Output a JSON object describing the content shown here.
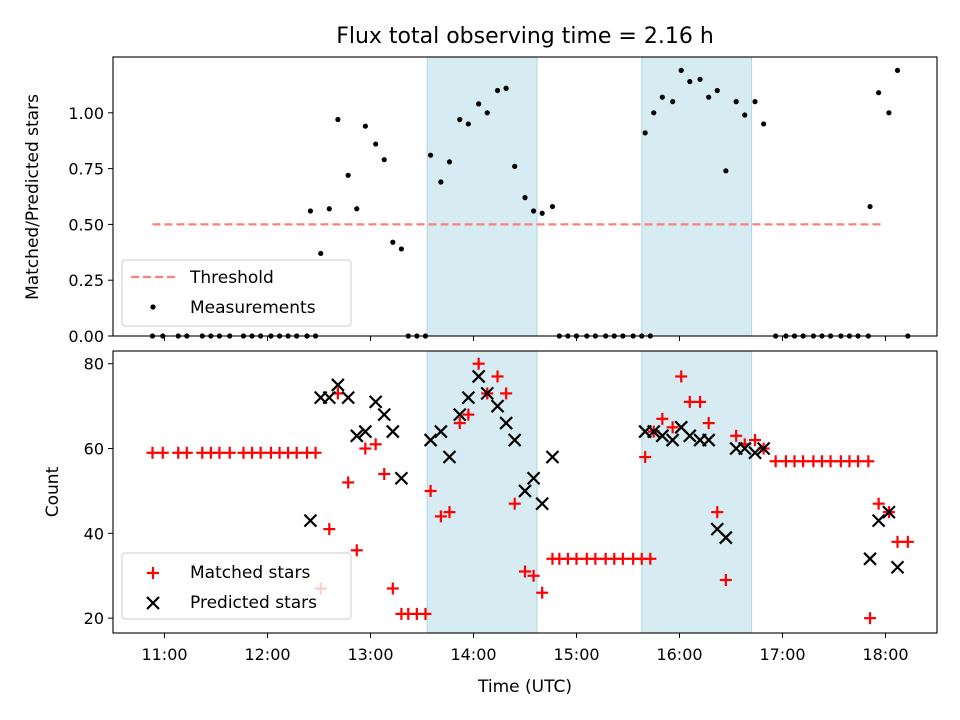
{
  "colors": {
    "shade": "#add8e6",
    "threshold": "#ff7f7f",
    "measurement": "#000000",
    "matched": "#ff0000",
    "predicted": "#000000"
  },
  "chart_data": [
    {
      "type": "scatter",
      "title": "Flux total observing time = 2.16 h",
      "xlabel": "",
      "ylabel": "Matched/Predicted stars",
      "xlim": [
        "10:30",
        "18:30"
      ],
      "ylim": [
        0,
        1.25
      ],
      "yticks": [
        "0.00",
        "0.25",
        "0.50",
        "0.75",
        "1.00"
      ],
      "shaded_spans": [
        [
          "13:33",
          "14:37"
        ],
        [
          "15:38",
          "16:42"
        ]
      ],
      "legend_position": "lower left",
      "threshold": {
        "name": "Threshold",
        "y": 0.5,
        "x_range": [
          "10:53",
          "17:59"
        ]
      },
      "series": [
        {
          "name": "Measurements",
          "points": [
            [
              "10:53",
              0.0
            ],
            [
              "10:59",
              0.0
            ],
            [
              "11:08",
              0.0
            ],
            [
              "11:13",
              0.0
            ],
            [
              "11:22",
              0.0
            ],
            [
              "11:27",
              0.0
            ],
            [
              "11:32",
              0.0
            ],
            [
              "11:38",
              0.0
            ],
            [
              "11:46",
              0.0
            ],
            [
              "11:51",
              0.0
            ],
            [
              "11:56",
              0.0
            ],
            [
              "12:02",
              0.0
            ],
            [
              "12:07",
              0.0
            ],
            [
              "12:12",
              0.0
            ],
            [
              "12:17",
              0.0
            ],
            [
              "12:23",
              0.0
            ],
            [
              "12:28",
              0.0
            ],
            [
              "12:25",
              0.56
            ],
            [
              "12:31",
              0.37
            ],
            [
              "12:36",
              0.57
            ],
            [
              "12:41",
              0.97
            ],
            [
              "12:47",
              0.72
            ],
            [
              "12:52",
              0.57
            ],
            [
              "12:57",
              0.94
            ],
            [
              "13:03",
              0.86
            ],
            [
              "13:08",
              0.79
            ],
            [
              "13:13",
              0.42
            ],
            [
              "13:18",
              0.39
            ],
            [
              "13:22",
              0.0
            ],
            [
              "13:27",
              0.0
            ],
            [
              "13:32",
              0.0
            ],
            [
              "13:35",
              0.81
            ],
            [
              "13:41",
              0.69
            ],
            [
              "13:46",
              0.78
            ],
            [
              "13:52",
              0.97
            ],
            [
              "13:57",
              0.95
            ],
            [
              "14:03",
              1.04
            ],
            [
              "14:08",
              1.0
            ],
            [
              "14:14",
              1.1
            ],
            [
              "14:19",
              1.11
            ],
            [
              "14:24",
              0.76
            ],
            [
              "14:30",
              0.62
            ],
            [
              "14:35",
              0.56
            ],
            [
              "14:40",
              0.55
            ],
            [
              "14:46",
              0.58
            ],
            [
              "14:50",
              0.0
            ],
            [
              "14:55",
              0.0
            ],
            [
              "15:00",
              0.0
            ],
            [
              "15:06",
              0.0
            ],
            [
              "15:11",
              0.0
            ],
            [
              "15:17",
              0.0
            ],
            [
              "15:22",
              0.0
            ],
            [
              "15:27",
              0.0
            ],
            [
              "15:33",
              0.0
            ],
            [
              "15:38",
              0.0
            ],
            [
              "15:43",
              0.0
            ],
            [
              "15:40",
              0.91
            ],
            [
              "15:45",
              1.0
            ],
            [
              "15:50",
              1.07
            ],
            [
              "15:56",
              1.05
            ],
            [
              "16:01",
              1.19
            ],
            [
              "16:06",
              1.14
            ],
            [
              "16:12",
              1.15
            ],
            [
              "16:17",
              1.07
            ],
            [
              "16:22",
              1.1
            ],
            [
              "16:27",
              0.74
            ],
            [
              "16:33",
              1.05
            ],
            [
              "16:38",
              0.99
            ],
            [
              "16:44",
              1.05
            ],
            [
              "16:49",
              0.95
            ],
            [
              "16:56",
              0.0
            ],
            [
              "17:02",
              0.0
            ],
            [
              "17:07",
              0.0
            ],
            [
              "17:12",
              0.0
            ],
            [
              "17:18",
              0.0
            ],
            [
              "17:23",
              0.0
            ],
            [
              "17:28",
              0.0
            ],
            [
              "17:34",
              0.0
            ],
            [
              "17:39",
              0.0
            ],
            [
              "17:44",
              0.0
            ],
            [
              "17:50",
              0.0
            ],
            [
              "17:51",
              0.58
            ],
            [
              "17:56",
              1.09
            ],
            [
              "18:02",
              1.0
            ],
            [
              "18:07",
              1.19
            ],
            [
              "18:13",
              0.0
            ]
          ]
        }
      ]
    },
    {
      "type": "scatter",
      "title": "",
      "xlabel": "Time (UTC)",
      "ylabel": "Count",
      "xlim": [
        "10:30",
        "18:30"
      ],
      "ylim": [
        16.5,
        83
      ],
      "xticks": [
        "11:00",
        "12:00",
        "13:00",
        "14:00",
        "15:00",
        "16:00",
        "17:00",
        "18:00"
      ],
      "yticks": [
        "20",
        "40",
        "60",
        "80"
      ],
      "shaded_spans": [
        [
          "13:33",
          "14:37"
        ],
        [
          "15:38",
          "16:42"
        ]
      ],
      "legend_position": "lower left",
      "series": [
        {
          "name": "Matched stars",
          "marker": "+",
          "points": [
            [
              "10:53",
              59
            ],
            [
              "10:59",
              59
            ],
            [
              "11:08",
              59
            ],
            [
              "11:13",
              59
            ],
            [
              "11:22",
              59
            ],
            [
              "11:27",
              59
            ],
            [
              "11:32",
              59
            ],
            [
              "11:38",
              59
            ],
            [
              "11:46",
              59
            ],
            [
              "11:51",
              59
            ],
            [
              "11:56",
              59
            ],
            [
              "12:02",
              59
            ],
            [
              "12:07",
              59
            ],
            [
              "12:12",
              59
            ],
            [
              "12:17",
              59
            ],
            [
              "12:23",
              59
            ],
            [
              "12:28",
              59
            ],
            [
              "12:31",
              27
            ],
            [
              "12:36",
              41
            ],
            [
              "12:41",
              73
            ],
            [
              "12:47",
              52
            ],
            [
              "12:52",
              36
            ],
            [
              "12:57",
              60
            ],
            [
              "13:03",
              61
            ],
            [
              "13:08",
              54
            ],
            [
              "13:13",
              27
            ],
            [
              "13:18",
              21
            ],
            [
              "13:22",
              21
            ],
            [
              "13:27",
              21
            ],
            [
              "13:32",
              21
            ],
            [
              "13:35",
              50
            ],
            [
              "13:41",
              44
            ],
            [
              "13:46",
              45
            ],
            [
              "13:52",
              66
            ],
            [
              "13:57",
              68
            ],
            [
              "14:03",
              80
            ],
            [
              "14:08",
              73
            ],
            [
              "14:14",
              77
            ],
            [
              "14:19",
              73
            ],
            [
              "14:24",
              47
            ],
            [
              "14:30",
              31
            ],
            [
              "14:35",
              30
            ],
            [
              "14:40",
              26
            ],
            [
              "14:46",
              34
            ],
            [
              "14:50",
              34
            ],
            [
              "14:55",
              34
            ],
            [
              "15:00",
              34
            ],
            [
              "15:06",
              34
            ],
            [
              "15:11",
              34
            ],
            [
              "15:17",
              34
            ],
            [
              "15:22",
              34
            ],
            [
              "15:27",
              34
            ],
            [
              "15:33",
              34
            ],
            [
              "15:38",
              34
            ],
            [
              "15:43",
              34
            ],
            [
              "15:40",
              58
            ],
            [
              "15:45",
              64
            ],
            [
              "15:50",
              67
            ],
            [
              "15:56",
              65
            ],
            [
              "16:01",
              77
            ],
            [
              "16:06",
              71
            ],
            [
              "16:12",
              71
            ],
            [
              "16:17",
              66
            ],
            [
              "16:22",
              45
            ],
            [
              "16:27",
              29
            ],
            [
              "16:33",
              63
            ],
            [
              "16:38",
              61
            ],
            [
              "16:44",
              62
            ],
            [
              "16:49",
              60
            ],
            [
              "16:56",
              57
            ],
            [
              "17:02",
              57
            ],
            [
              "17:07",
              57
            ],
            [
              "17:12",
              57
            ],
            [
              "17:18",
              57
            ],
            [
              "17:23",
              57
            ],
            [
              "17:28",
              57
            ],
            [
              "17:34",
              57
            ],
            [
              "17:39",
              57
            ],
            [
              "17:44",
              57
            ],
            [
              "17:50",
              57
            ],
            [
              "17:51",
              20
            ],
            [
              "17:56",
              47
            ],
            [
              "18:02",
              45
            ],
            [
              "18:07",
              38
            ],
            [
              "18:13",
              38
            ]
          ]
        },
        {
          "name": "Predicted stars",
          "marker": "x",
          "points": [
            [
              "12:25",
              43
            ],
            [
              "12:31",
              72
            ],
            [
              "12:36",
              72
            ],
            [
              "12:41",
              75
            ],
            [
              "12:47",
              72
            ],
            [
              "12:52",
              63
            ],
            [
              "12:57",
              64
            ],
            [
              "13:03",
              71
            ],
            [
              "13:08",
              68
            ],
            [
              "13:13",
              64
            ],
            [
              "13:18",
              53
            ],
            [
              "13:35",
              62
            ],
            [
              "13:41",
              64
            ],
            [
              "13:46",
              58
            ],
            [
              "13:52",
              68
            ],
            [
              "13:57",
              72
            ],
            [
              "14:03",
              77
            ],
            [
              "14:08",
              73
            ],
            [
              "14:14",
              70
            ],
            [
              "14:19",
              66
            ],
            [
              "14:24",
              62
            ],
            [
              "14:30",
              50
            ],
            [
              "14:35",
              53
            ],
            [
              "14:40",
              47
            ],
            [
              "14:46",
              58
            ],
            [
              "15:40",
              64
            ],
            [
              "15:45",
              64
            ],
            [
              "15:50",
              63
            ],
            [
              "15:56",
              62
            ],
            [
              "16:01",
              65
            ],
            [
              "16:06",
              63
            ],
            [
              "16:12",
              62
            ],
            [
              "16:17",
              62
            ],
            [
              "16:22",
              41
            ],
            [
              "16:27",
              39
            ],
            [
              "16:33",
              60
            ],
            [
              "16:38",
              60
            ],
            [
              "16:44",
              59
            ],
            [
              "16:49",
              60
            ],
            [
              "17:51",
              34
            ],
            [
              "17:56",
              43
            ],
            [
              "18:02",
              45
            ],
            [
              "18:07",
              32
            ]
          ]
        }
      ]
    }
  ]
}
